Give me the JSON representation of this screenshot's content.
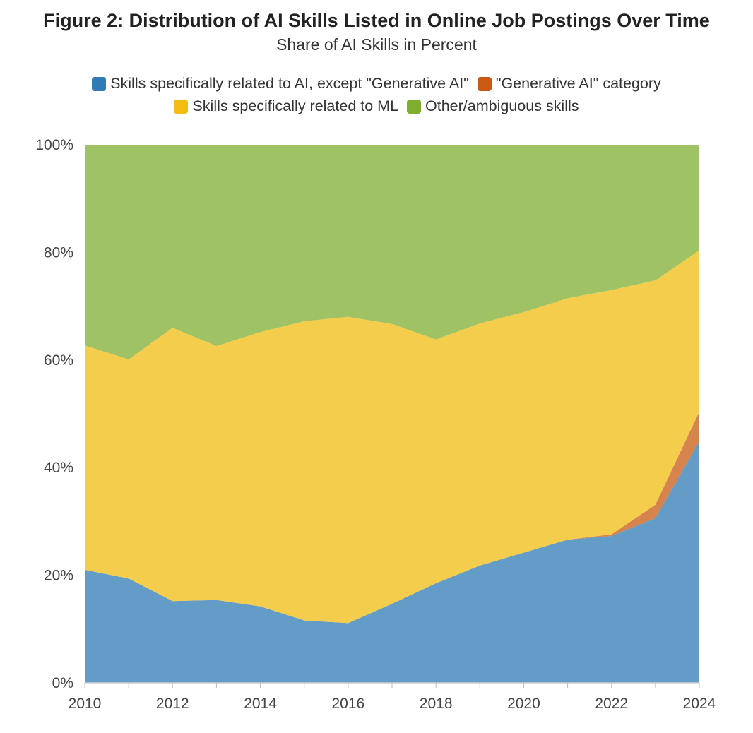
{
  "chart_data": {
    "type": "area",
    "stacked": true,
    "normalized": true,
    "title": "Figure 2: Distribution of AI Skills Listed in Online Job Postings Over Time",
    "subtitle": "Share of AI Skills in Percent",
    "xlabel": "",
    "ylabel": "",
    "x": [
      2010,
      2011,
      2012,
      2013,
      2014,
      2015,
      2016,
      2017,
      2018,
      2019,
      2020,
      2021,
      2022,
      2023,
      2024
    ],
    "x_ticks": [
      "2010",
      "2012",
      "2014",
      "2016",
      "2018",
      "2020",
      "2022",
      "2024"
    ],
    "x_tick_values": [
      2010,
      2012,
      2014,
      2016,
      2018,
      2020,
      2022,
      2024
    ],
    "xlim": [
      2010,
      2024
    ],
    "ylim": [
      0,
      100
    ],
    "y_ticks": [
      "0%",
      "20%",
      "40%",
      "60%",
      "80%",
      "100%"
    ],
    "y_tick_values": [
      0,
      20,
      40,
      60,
      80,
      100
    ],
    "legend_position": "top-center",
    "grid": false,
    "series": [
      {
        "name": "Skills specifically related to AI, except \"Generative AI\"",
        "color": "#2f7bb3",
        "values": [
          21.0,
          19.4,
          15.2,
          15.4,
          14.2,
          11.6,
          11.1,
          14.7,
          18.5,
          21.8,
          24.2,
          26.6,
          27.3,
          30.6,
          44.9
        ]
      },
      {
        "name": "\"Generative AI\" category",
        "color": "#c85a12",
        "values": [
          0,
          0,
          0,
          0,
          0,
          0,
          0,
          0,
          0,
          0,
          0,
          0,
          0.3,
          2.5,
          5.5
        ]
      },
      {
        "name": "Skills specifically related to ML",
        "color": "#f2bc11",
        "values": [
          41.7,
          40.7,
          50.8,
          47.2,
          51.0,
          55.6,
          56.9,
          52.0,
          45.3,
          45.0,
          44.7,
          44.9,
          45.4,
          41.7,
          30.0
        ]
      },
      {
        "name": "Other/ambiguous skills",
        "color": "#7fad30",
        "values": [
          37.3,
          39.9,
          34.0,
          37.4,
          34.8,
          32.8,
          32.0,
          33.3,
          36.2,
          33.2,
          31.1,
          28.5,
          27.0,
          25.2,
          19.6
        ]
      }
    ]
  }
}
